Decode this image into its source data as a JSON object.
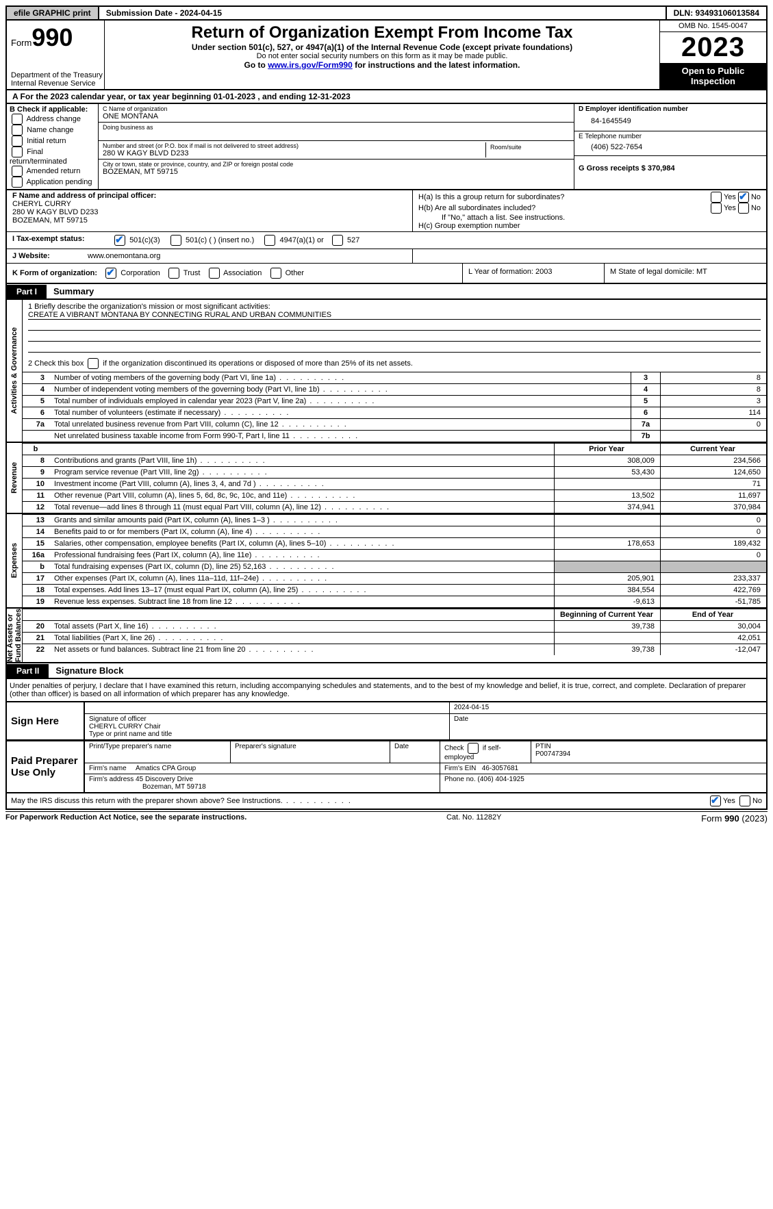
{
  "top": {
    "efile": "efile GRAPHIC print",
    "submission": "Submission Date - 2024-04-15",
    "dln": "DLN: 93493106013584"
  },
  "header": {
    "form_prefix": "Form",
    "form_no": "990",
    "title": "Return of Organization Exempt From Income Tax",
    "sub1": "Under section 501(c), 527, or 4947(a)(1) of the Internal Revenue Code (except private foundations)",
    "sub2": "Do not enter social security numbers on this form as it may be made public.",
    "sub3_pre": "Go to ",
    "sub3_link": "www.irs.gov/Form990",
    "sub3_post": " for instructions and the latest information.",
    "dept": "Department of the Treasury\nInternal Revenue Service",
    "omb": "OMB No. 1545-0047",
    "year": "2023",
    "open": "Open to Public Inspection"
  },
  "lineA": "A  For the 2023 calendar year, or tax year beginning 01-01-2023   , and ending 12-31-2023",
  "boxB": {
    "title": "B Check if applicable:",
    "items": [
      "Address change",
      "Name change",
      "Initial return",
      "Final return/terminated",
      "Amended return",
      "Application pending"
    ]
  },
  "boxC": {
    "name_lbl": "C Name of organization",
    "name": "ONE MONTANA",
    "dba_lbl": "Doing business as",
    "street_lbl": "Number and street (or P.O. box if mail is not delivered to street address)",
    "street": "280 W KAGY BLVD D233",
    "room_lbl": "Room/suite",
    "city_lbl": "City or town, state or province, country, and ZIP or foreign postal code",
    "city": "BOZEMAN, MT  59715"
  },
  "boxDE": {
    "d_lbl": "D Employer identification number",
    "d_val": "84-1645549",
    "e_lbl": "E Telephone number",
    "e_val": "(406) 522-7654",
    "g_lbl": "G Gross receipts $ 370,984"
  },
  "boxF": {
    "lbl": "F  Name and address of principal officer:",
    "name": "CHERYL CURRY",
    "addr1": "280 W KAGY BLVD D233",
    "addr2": "BOZEMAN, MT  59715"
  },
  "boxH": {
    "a": "H(a)  Is this a group return for subordinates?",
    "b": "H(b)  Are all subordinates included?",
    "b_note": "If \"No,\" attach a list. See instructions.",
    "c": "H(c)  Group exemption number",
    "yes": "Yes",
    "no": "No"
  },
  "rowI": {
    "lbl": "I   Tax-exempt status:",
    "o1": "501(c)(3)",
    "o2": "501(c) (  ) (insert no.)",
    "o3": "4947(a)(1) or",
    "o4": "527"
  },
  "rowJ": {
    "lbl": "J   Website:",
    "val": "www.onemontana.org"
  },
  "rowK": {
    "lbl": "K Form of organization:",
    "o1": "Corporation",
    "o2": "Trust",
    "o3": "Association",
    "o4": "Other",
    "l": "L Year of formation: 2003",
    "m": "M State of legal domicile: MT"
  },
  "part1": {
    "tag": "Part I",
    "title": "Summary"
  },
  "mission": {
    "q1": "1   Briefly describe the organization's mission or most significant activities:",
    "text": "CREATE A VIBRANT MONTANA BY CONNECTING RURAL AND URBAN COMMUNITIES",
    "q2_pre": "2   Check this box ",
    "q2_post": " if the organization discontinued its operations or disposed of more than 25% of its net assets."
  },
  "gov_rows": [
    {
      "n": "3",
      "t": "Number of voting members of the governing body (Part VI, line 1a)",
      "box": "3",
      "v": "8"
    },
    {
      "n": "4",
      "t": "Number of independent voting members of the governing body (Part VI, line 1b)",
      "box": "4",
      "v": "8"
    },
    {
      "n": "5",
      "t": "Total number of individuals employed in calendar year 2023 (Part V, line 2a)",
      "box": "5",
      "v": "3"
    },
    {
      "n": "6",
      "t": "Total number of volunteers (estimate if necessary)",
      "box": "6",
      "v": "114"
    },
    {
      "n": "7a",
      "t": "Total unrelated business revenue from Part VIII, column (C), line 12",
      "box": "7a",
      "v": "0"
    },
    {
      "n": "",
      "t": "Net unrelated business taxable income from Form 990-T, Part I, line 11",
      "box": "7b",
      "v": ""
    }
  ],
  "rev_hdr": {
    "b": "b",
    "py": "Prior Year",
    "cy": "Current Year"
  },
  "rev_rows": [
    {
      "n": "8",
      "t": "Contributions and grants (Part VIII, line 1h)",
      "py": "308,009",
      "cy": "234,566"
    },
    {
      "n": "9",
      "t": "Program service revenue (Part VIII, line 2g)",
      "py": "53,430",
      "cy": "124,650"
    },
    {
      "n": "10",
      "t": "Investment income (Part VIII, column (A), lines 3, 4, and 7d )",
      "py": "",
      "cy": "71"
    },
    {
      "n": "11",
      "t": "Other revenue (Part VIII, column (A), lines 5, 6d, 8c, 9c, 10c, and 11e)",
      "py": "13,502",
      "cy": "11,697"
    },
    {
      "n": "12",
      "t": "Total revenue—add lines 8 through 11 (must equal Part VIII, column (A), line 12)",
      "py": "374,941",
      "cy": "370,984"
    }
  ],
  "exp_rows": [
    {
      "n": "13",
      "t": "Grants and similar amounts paid (Part IX, column (A), lines 1–3 )",
      "py": "",
      "cy": "0"
    },
    {
      "n": "14",
      "t": "Benefits paid to or for members (Part IX, column (A), line 4)",
      "py": "",
      "cy": "0"
    },
    {
      "n": "15",
      "t": "Salaries, other compensation, employee benefits (Part IX, column (A), lines 5–10)",
      "py": "178,653",
      "cy": "189,432"
    },
    {
      "n": "16a",
      "t": "Professional fundraising fees (Part IX, column (A), line 11e)",
      "py": "",
      "cy": "0"
    },
    {
      "n": "b",
      "t": "Total fundraising expenses (Part IX, column (D), line 25) 52,163",
      "py": "SHADE",
      "cy": "SHADE"
    },
    {
      "n": "17",
      "t": "Other expenses (Part IX, column (A), lines 11a–11d, 11f–24e)",
      "py": "205,901",
      "cy": "233,337"
    },
    {
      "n": "18",
      "t": "Total expenses. Add lines 13–17 (must equal Part IX, column (A), line 25)",
      "py": "384,554",
      "cy": "422,769"
    },
    {
      "n": "19",
      "t": "Revenue less expenses. Subtract line 18 from line 12",
      "py": "-9,613",
      "cy": "-51,785"
    }
  ],
  "na_hdr": {
    "py": "Beginning of Current Year",
    "cy": "End of Year"
  },
  "na_rows": [
    {
      "n": "20",
      "t": "Total assets (Part X, line 16)",
      "py": "39,738",
      "cy": "30,004"
    },
    {
      "n": "21",
      "t": "Total liabilities (Part X, line 26)",
      "py": "",
      "cy": "42,051"
    },
    {
      "n": "22",
      "t": "Net assets or fund balances. Subtract line 21 from line 20",
      "py": "39,738",
      "cy": "-12,047"
    }
  ],
  "vlabels": {
    "gov": "Activities & Governance",
    "rev": "Revenue",
    "exp": "Expenses",
    "na": "Net Assets or\nFund Balances"
  },
  "part2": {
    "tag": "Part II",
    "title": "Signature Block"
  },
  "declare": "Under penalties of perjury, I declare that I have examined this return, including accompanying schedules and statements, and to the best of my knowledge and belief, it is true, correct, and complete. Declaration of preparer (other than officer) is based on all information of which preparer has any knowledge.",
  "sign": {
    "here": "Sign Here",
    "sig_lbl": "Signature of officer",
    "date_lbl": "Date",
    "date_val": "2024-04-15",
    "name": "CHERYL CURRY  Chair",
    "name_lbl": "Type or print name and title"
  },
  "prep": {
    "here": "Paid Preparer Use Only",
    "c1": "Print/Type preparer's name",
    "c2": "Preparer's signature",
    "c3": "Date",
    "c4_pre": "Check",
    "c4_post": "if self-employed",
    "c5": "PTIN",
    "ptin": "P00747394",
    "firm_lbl": "Firm's name",
    "firm": "Amatics CPA Group",
    "ein_lbl": "Firm's EIN",
    "ein": "46-3057681",
    "addr_lbl": "Firm's address",
    "addr1": "45 Discovery Drive",
    "addr2": "Bozeman, MT  59718",
    "phone_lbl": "Phone no.",
    "phone": "(406) 404-1925"
  },
  "may": {
    "q": "May the IRS discuss this return with the preparer shown above? See Instructions.",
    "yes": "Yes",
    "no": "No"
  },
  "footer": {
    "l": "For Paperwork Reduction Act Notice, see the separate instructions.",
    "m": "Cat. No. 11282Y",
    "r_pre": "Form ",
    "r_b": "990",
    "r_post": " (2023)"
  }
}
